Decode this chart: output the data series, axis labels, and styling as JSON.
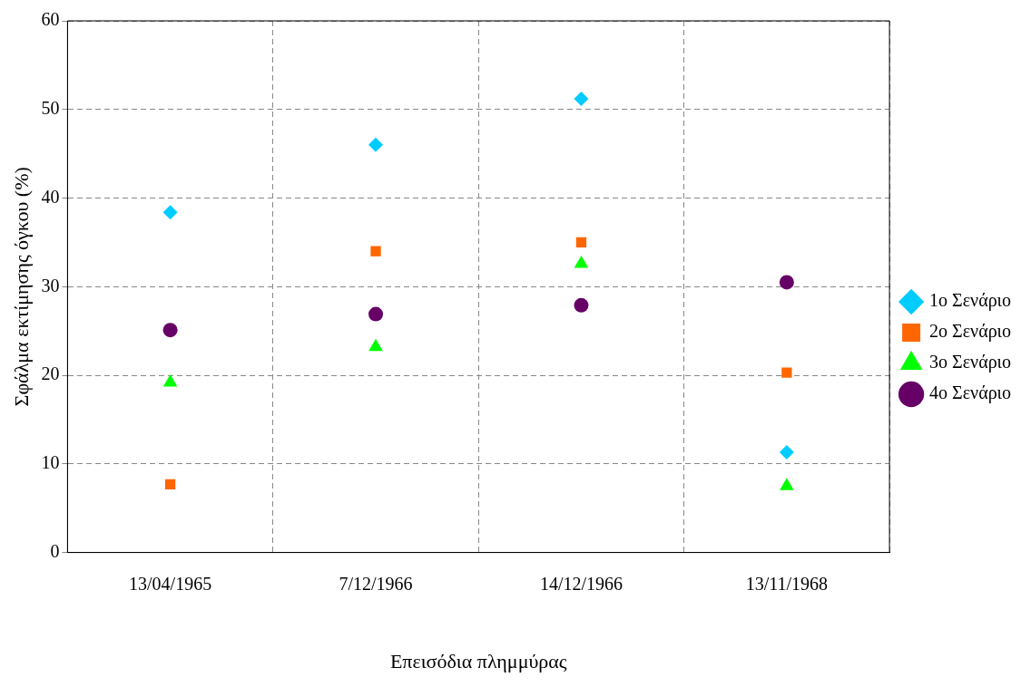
{
  "chart_data": {
    "type": "scatter",
    "xlabel": "Επεισόδια πλημμύρας",
    "ylabel": "Σφάλμα εκτίμησης όγκου (%)",
    "categories": [
      "13/04/1965",
      "7/12/1966",
      "14/12/1966",
      "13/11/1968"
    ],
    "series": [
      {
        "name": "1ο Σενάριο",
        "color": "#00ccff",
        "marker": "diamond",
        "values": [
          38.4,
          46.0,
          51.2,
          11.3
        ]
      },
      {
        "name": "2ο Σενάριο",
        "color": "#ff6600",
        "marker": "square",
        "values": [
          7.7,
          34.0,
          35.0,
          20.3
        ]
      },
      {
        "name": "3ο Σενάριο",
        "color": "#00ff00",
        "marker": "triangle",
        "values": [
          19.2,
          23.2,
          32.6,
          7.5
        ]
      },
      {
        "name": "4ο Σενάριο",
        "color": "#660066",
        "marker": "circle",
        "values": [
          25.1,
          26.9,
          27.9,
          30.5
        ]
      }
    ],
    "ylim": [
      0,
      60
    ],
    "yticks": [
      0,
      10,
      20,
      30,
      40,
      50,
      60
    ],
    "grid": true,
    "legend": "right"
  }
}
